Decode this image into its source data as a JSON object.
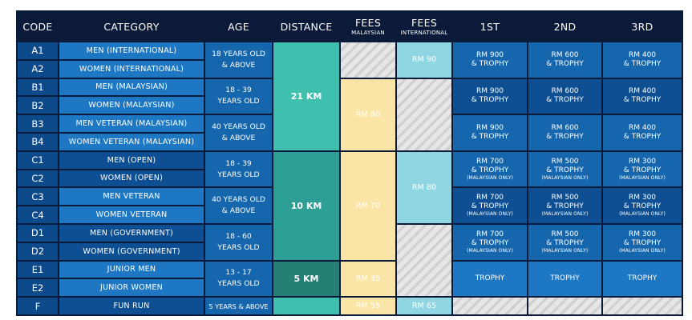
{
  "headers": {
    "code": "CODE",
    "category": "CATEGORY",
    "age": "AGE",
    "distance": "DISTANCE",
    "fees_my": "FEES",
    "fees_my_sub": "MALAYSIAN",
    "fees_intl": "FEES",
    "fees_intl_sub": "INTERNATIONAL",
    "first": "1ST",
    "second": "2ND",
    "third": "3RD"
  },
  "rows": [
    {
      "code": "A1",
      "category": "MEN (INTERNATIONAL)"
    },
    {
      "code": "A2",
      "category": "WOMEN (INTERNATIONAL)"
    },
    {
      "code": "B1",
      "category": "MEN (MALAYSIAN)"
    },
    {
      "code": "B2",
      "category": "WOMEN (MALAYSIAN)"
    },
    {
      "code": "B3",
      "category": "MEN VETERAN (MALAYSIAN)"
    },
    {
      "code": "B4",
      "category": "WOMEN VETERAN (MALAYSIAN)"
    },
    {
      "code": "C1",
      "category": "MEN (OPEN)"
    },
    {
      "code": "C2",
      "category": "WOMEN (OPEN)"
    },
    {
      "code": "C3",
      "category": "MEN VETERAN"
    },
    {
      "code": "C4",
      "category": "WOMEN VETERAN"
    },
    {
      "code": "D1",
      "category": "MEN (GOVERNMENT)"
    },
    {
      "code": "D2",
      "category": "WOMEN (GOVERNMENT)"
    },
    {
      "code": "E1",
      "category": "JUNIOR MEN"
    },
    {
      "code": "E2",
      "category": "JUNIOR WOMEN"
    },
    {
      "code": "F",
      "category": "FUN RUN"
    }
  ],
  "ages": [
    {
      "line1": "18 YEARS OLD",
      "line2": "& ABOVE"
    },
    {
      "line1": "18 - 39",
      "line2": "YEARS OLD"
    },
    {
      "line1": "40 YEARS OLD",
      "line2": "& ABOVE"
    },
    {
      "line1": "18 - 39",
      "line2": "YEARS OLD"
    },
    {
      "line1": "40 YEARS OLD",
      "line2": "& ABOVE"
    },
    {
      "line1": "18 - 60",
      "line2": "YEARS OLD"
    },
    {
      "line1": "13 - 17",
      "line2": "YEARS OLD"
    },
    {
      "line1": "5 YEARS & ABOVE",
      "line2": ""
    }
  ],
  "distances": [
    "21 KM",
    "10 KM",
    "5 KM"
  ],
  "fees_malaysian": [
    "RM 80",
    "RM 70",
    "RM 35",
    "RM 55"
  ],
  "fees_international": [
    "RM 90",
    "RM 80",
    "RM 65"
  ],
  "prizes": [
    {
      "first": [
        "RM 900",
        "& TROPHY"
      ],
      "second": [
        "RM 600",
        "& TROPHY"
      ],
      "third": [
        "RM 400",
        "& TROPHY"
      ]
    },
    {
      "first": [
        "RM 900",
        "& TROPHY"
      ],
      "second": [
        "RM 600",
        "& TROPHY"
      ],
      "third": [
        "RM 400",
        "& TROPHY"
      ]
    },
    {
      "first": [
        "RM 900",
        "& TROPHY"
      ],
      "second": [
        "RM 600",
        "& TROPHY"
      ],
      "third": [
        "RM 400",
        "& TROPHY"
      ]
    },
    {
      "first": [
        "RM 700",
        "& TROPHY"
      ],
      "second": [
        "RM 500",
        "& TROPHY"
      ],
      "third": [
        "RM 300",
        "& TROPHY"
      ]
    },
    {
      "first": [
        "RM 700",
        "& TROPHY"
      ],
      "second": [
        "RM 500",
        "& TROPHY"
      ],
      "third": [
        "RM 300",
        "& TROPHY"
      ]
    },
    {
      "first": [
        "RM 700",
        "& TROPHY"
      ],
      "second": [
        "RM 500",
        "& TROPHY"
      ],
      "third": [
        "RM 300",
        "& TROPHY"
      ]
    },
    {
      "first": [
        "TROPHY"
      ],
      "second": [
        "TROPHY"
      ],
      "third": [
        "TROPHY"
      ]
    }
  ],
  "malaysian_only_note": "(MALAYSIAN ONLY)",
  "colors": {
    "header": "#0b1a38",
    "row_light": "#1e77c3",
    "row_dark": "#0d4f92",
    "distance_21km": "#3fbfae",
    "distance_10km": "#2e9f94",
    "distance_5km": "#257f74",
    "fee_malaysian": "#fbe5a6",
    "fee_international": "#8fd6e2",
    "not_applicable": "hatched-grey"
  }
}
